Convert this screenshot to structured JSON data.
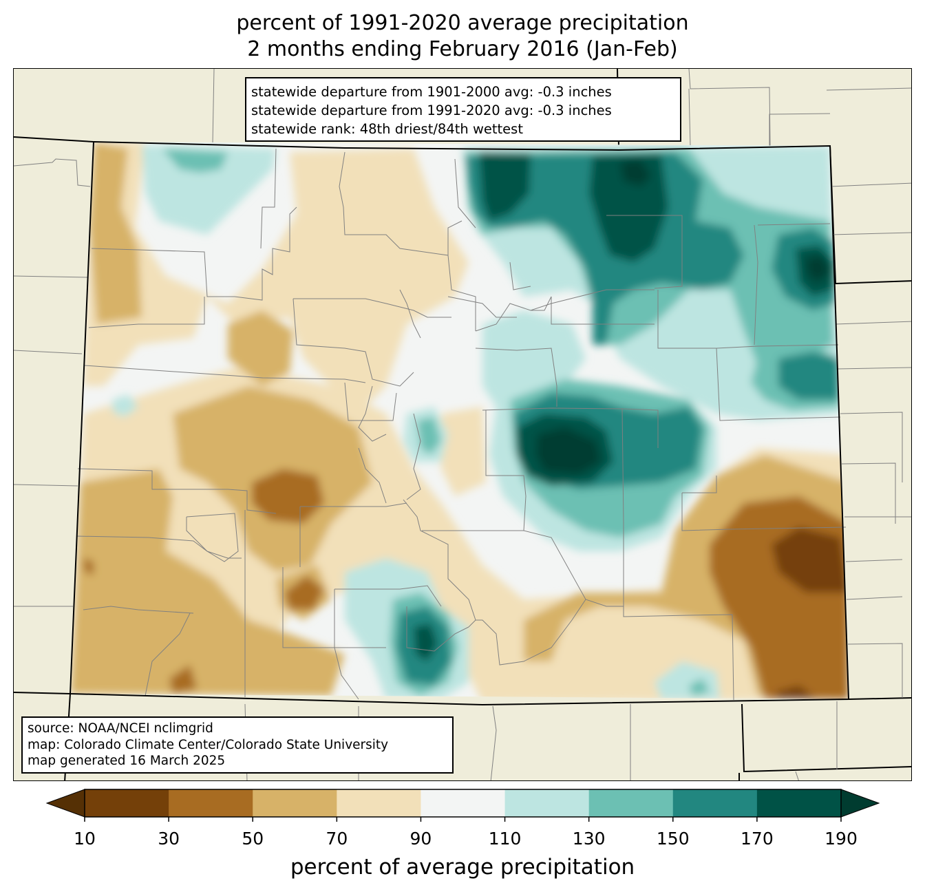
{
  "title": {
    "line1": "percent of 1991-2020 average precipitation",
    "line2": "2 months ending February 2016 (Jan-Feb)"
  },
  "stats": {
    "line1": "statewide departure from 1901-2000 avg: -0.3 inches",
    "line2": "statewide departure from 1991-2020 avg: -0.3 inches",
    "line3": "statewide rank: 48th driest/84th wettest"
  },
  "source": {
    "line1": "source: NOAA/NCEI nclimgrid",
    "line2": "map: Colorado Climate Center/Colorado State University",
    "line3": "map generated 16 March 2025"
  },
  "colorbar": {
    "label": "percent of average precipitation",
    "ticks": [
      "10",
      "30",
      "50",
      "70",
      "90",
      "110",
      "130",
      "150",
      "170",
      "190"
    ],
    "colors": [
      "#744009",
      "#a86c22",
      "#d7b268",
      "#f2e0b9",
      "#f3f5f4",
      "#bde5e1",
      "#6cc0b3",
      "#228780",
      "#005246"
    ],
    "under_color": "#553005",
    "over_color": "#003c30"
  },
  "map": {
    "background_color": "#efedda",
    "state_border_color": "#000000",
    "county_line_color": "#808080"
  }
}
